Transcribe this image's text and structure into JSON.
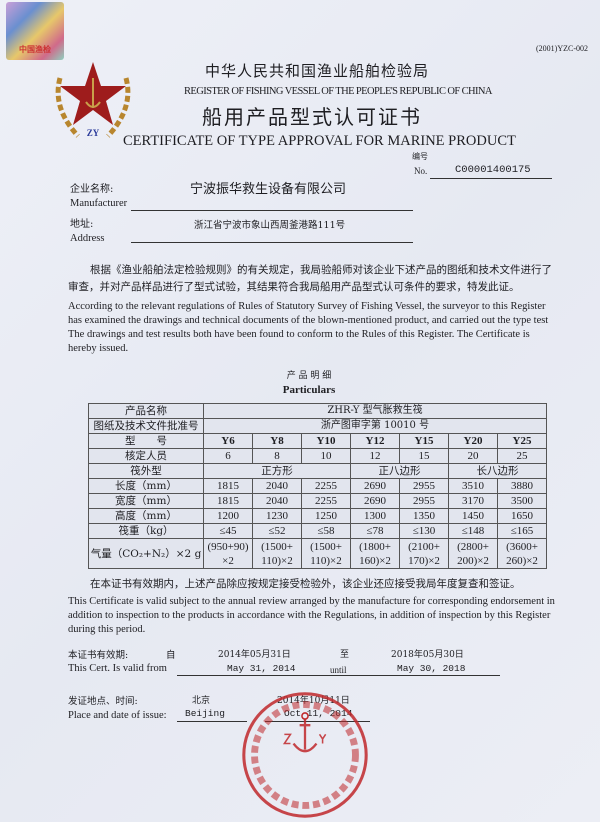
{
  "hologram": {
    "text": "中国渔检"
  },
  "form_code": "(2001)YZC-002",
  "emblem": {
    "letters": "ZY"
  },
  "issuer": {
    "cn": "中华人民共和国渔业船舶检验局",
    "en": "REGISTER OF FISHING VESSEL OF THE PEOPLE'S REPUBLIC OF CHINA"
  },
  "title": {
    "cn": "船用产品型式认可证书",
    "en": "CERTIFICATE OF TYPE APPROVAL FOR MARINE PRODUCT"
  },
  "number": {
    "label_cn": "编号",
    "label_en": "No.",
    "value": "C00001400175"
  },
  "manufacturer": {
    "label_cn": "企业名称:",
    "label_en": "Manufacturer",
    "value": "宁波振华救生设备有限公司"
  },
  "address": {
    "label_cn": "地址:",
    "label_en": "Address",
    "value": "浙江省宁波市象山西周釜港路111号"
  },
  "intro": {
    "cn": "根据《渔业船舶法定检验规则》的有关规定，我局验船师对该企业下述产品的图纸和技术文件进行了审查，并对产品样品进行了型式试验，其结果符合我局船用产品型式认可条件的要求，特发此证。",
    "en": "According to the relevant regulations of Rules of Statutory Survey of Fishing Vessel, the surveyor to this Register has examined the drawings and technical documents of the blown-mentioned product, and carried out the type test The drawings and test results both have been found to conform to the Rules of this Register. The Certificate is hereby issued."
  },
  "particulars": {
    "title_cn": "产 品 明 细",
    "title_en": "Particulars",
    "product_name_label": "产品名称",
    "product_name": "ZHR-Y 型气胀救生筏",
    "approval_label": "图纸及技术文件批准号",
    "approval_no": "浙产图审字第 10010 号",
    "rows": [
      {
        "label": "型　　号",
        "values": [
          "Y6",
          "Y8",
          "Y10",
          "Y12",
          "Y15",
          "Y20",
          "Y25"
        ]
      },
      {
        "label": "核定人员",
        "values": [
          "6",
          "8",
          "10",
          "12",
          "15",
          "20",
          "25"
        ]
      },
      {
        "label": "筏外型",
        "groups": [
          {
            "text": "正方形",
            "span": 3
          },
          {
            "text": "正八边形",
            "span": 2
          },
          {
            "text": "长八边形",
            "span": 2
          }
        ]
      },
      {
        "label": "长度（mm）",
        "values": [
          "1815",
          "2040",
          "2255",
          "2690",
          "2955",
          "3510",
          "3880"
        ]
      },
      {
        "label": "宽度（mm）",
        "values": [
          "1815",
          "2040",
          "2255",
          "2690",
          "2955",
          "3170",
          "3500"
        ]
      },
      {
        "label": "高度（mm）",
        "values": [
          "1200",
          "1230",
          "1250",
          "1300",
          "1350",
          "1450",
          "1650"
        ]
      },
      {
        "label": "筏重（kg）",
        "values": [
          "≤45",
          "≤52",
          "≤58",
          "≤78",
          "≤130",
          "≤148",
          "≤165"
        ]
      },
      {
        "label": "气量（CO₂+N₂）×2 g",
        "values": [
          "(950+90) ×2",
          "(1500+ 110)×2",
          "(1500+ 110)×2",
          "(1800+ 160)×2",
          "(2100+ 170)×2",
          "(2800+ 200)×2",
          "(3600+ 260)×2"
        ]
      }
    ]
  },
  "validity_note": {
    "cn": "在本证书有效期内，上述产品除应按规定接受检验外，该企业还应接受我局年度复查和签证。",
    "en": "This Certificate is valid subject to the annual review arranged by the manufacture for corresponding endorsement in addition to inspection to the products in accordance with the Regulations, in addition of inspection by this Register during this period."
  },
  "valid_period": {
    "label_cn": "本证书有效期:",
    "label_en": "This Cert. Is valid from",
    "from_word_cn": "自",
    "until_word_cn": "至",
    "until_word_en": "until",
    "from_cn": "2014年05月31日",
    "from_en": "May 31, 2014",
    "to_cn": "2018年05月30日",
    "to_en": "May 30, 2018"
  },
  "issue": {
    "label_cn": "发证地点、时间:",
    "label_en": "Place and date of issue:",
    "place_cn": "北京",
    "place_en": "Beijing",
    "date_cn": "2014年10月11日",
    "date_en": "Oct 11, 2014"
  },
  "stamp": {
    "text": "中华人民共和国渔业船舶检验局",
    "letters": "ZY"
  },
  "colors": {
    "stamp_red": "#c0282a",
    "emblem_red": "#9e1c1c",
    "emblem_gold": "#b8862e"
  }
}
